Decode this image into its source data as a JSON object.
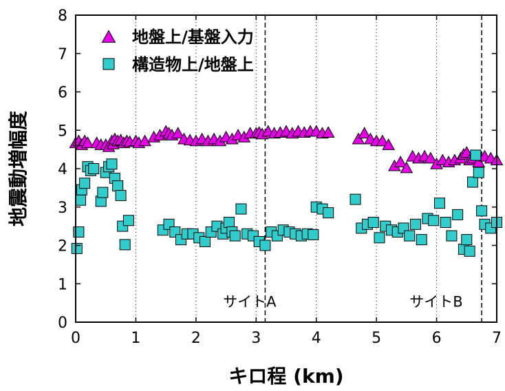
{
  "chart_data": {
    "type": "scatter",
    "xlabel": "キロ程 (km)",
    "ylabel": "地震動増幅度",
    "xlim": [
      0,
      7
    ],
    "ylim": [
      0,
      8
    ],
    "xticks": [
      "0",
      "1",
      "2",
      "3",
      "4",
      "5",
      "6",
      "7"
    ],
    "yticks": [
      "0",
      "1",
      "2",
      "3",
      "4",
      "5",
      "6",
      "7",
      "8"
    ],
    "grid": "vertical-dotted",
    "legend_position": "top-left",
    "reference_lines": [
      3.15,
      6.75
    ],
    "annotations": [
      {
        "text": "サイトA",
        "x": 2.45,
        "y": 0.4
      },
      {
        "text": "サイトB",
        "x": 5.55,
        "y": 0.4
      }
    ],
    "series": [
      {
        "name": "地盤上/基盤入力",
        "marker": "triangle",
        "color": "#e600e6",
        "points": [
          [
            0.0,
            4.65
          ],
          [
            0.05,
            4.7
          ],
          [
            0.1,
            4.6
          ],
          [
            0.15,
            4.7
          ],
          [
            0.2,
            4.65
          ],
          [
            0.35,
            4.65
          ],
          [
            0.42,
            4.6
          ],
          [
            0.5,
            4.6
          ],
          [
            0.55,
            4.55
          ],
          [
            0.6,
            4.7
          ],
          [
            0.62,
            4.62
          ],
          [
            0.65,
            4.75
          ],
          [
            0.7,
            4.7
          ],
          [
            0.75,
            4.72
          ],
          [
            0.8,
            4.65
          ],
          [
            0.85,
            4.7
          ],
          [
            0.9,
            4.68
          ],
          [
            1.0,
            4.7
          ],
          [
            1.05,
            4.65
          ],
          [
            1.15,
            4.7
          ],
          [
            1.3,
            4.8
          ],
          [
            1.4,
            4.85
          ],
          [
            1.5,
            4.95
          ],
          [
            1.55,
            4.9
          ],
          [
            1.6,
            4.85
          ],
          [
            1.7,
            4.9
          ],
          [
            1.8,
            4.75
          ],
          [
            1.9,
            4.72
          ],
          [
            2.0,
            4.7
          ],
          [
            2.1,
            4.75
          ],
          [
            2.2,
            4.7
          ],
          [
            2.3,
            4.75
          ],
          [
            2.4,
            4.7
          ],
          [
            2.5,
            4.8
          ],
          [
            2.6,
            4.75
          ],
          [
            2.7,
            4.85
          ],
          [
            2.8,
            4.8
          ],
          [
            2.9,
            4.9
          ],
          [
            3.0,
            4.9
          ],
          [
            3.05,
            4.92
          ],
          [
            3.1,
            4.88
          ],
          [
            3.2,
            4.95
          ],
          [
            3.3,
            4.9
          ],
          [
            3.4,
            4.92
          ],
          [
            3.5,
            4.95
          ],
          [
            3.6,
            4.9
          ],
          [
            3.7,
            4.95
          ],
          [
            3.8,
            4.92
          ],
          [
            3.9,
            4.95
          ],
          [
            4.0,
            4.95
          ],
          [
            4.1,
            4.9
          ],
          [
            4.2,
            4.92
          ],
          [
            4.7,
            4.75
          ],
          [
            4.8,
            4.9
          ],
          [
            4.9,
            4.75
          ],
          [
            5.0,
            4.7
          ],
          [
            5.1,
            4.7
          ],
          [
            5.2,
            4.6
          ],
          [
            5.3,
            4.05
          ],
          [
            5.4,
            4.15
          ],
          [
            5.5,
            4.0
          ],
          [
            5.6,
            4.3
          ],
          [
            5.7,
            4.25
          ],
          [
            5.8,
            4.3
          ],
          [
            5.9,
            4.25
          ],
          [
            6.0,
            4.1
          ],
          [
            6.1,
            4.2
          ],
          [
            6.2,
            4.15
          ],
          [
            6.3,
            4.2
          ],
          [
            6.4,
            4.25
          ],
          [
            6.45,
            4.35
          ],
          [
            6.5,
            4.4
          ],
          [
            6.55,
            4.2
          ],
          [
            6.6,
            4.25
          ],
          [
            6.7,
            4.15
          ],
          [
            6.8,
            4.3
          ],
          [
            6.9,
            4.25
          ],
          [
            7.0,
            4.2
          ]
        ]
      },
      {
        "name": "構造物上/地盤上",
        "marker": "square",
        "color": "#33cccc",
        "points": [
          [
            0.02,
            1.92
          ],
          [
            0.05,
            2.35
          ],
          [
            0.08,
            3.18
          ],
          [
            0.1,
            3.45
          ],
          [
            0.15,
            3.62
          ],
          [
            0.2,
            4.05
          ],
          [
            0.25,
            3.95
          ],
          [
            0.3,
            4.0
          ],
          [
            0.42,
            3.15
          ],
          [
            0.45,
            3.38
          ],
          [
            0.5,
            3.9
          ],
          [
            0.55,
            4.05
          ],
          [
            0.6,
            4.12
          ],
          [
            0.65,
            3.75
          ],
          [
            0.7,
            3.55
          ],
          [
            0.75,
            3.3
          ],
          [
            0.78,
            2.5
          ],
          [
            0.82,
            2.02
          ],
          [
            0.88,
            2.65
          ],
          [
            1.45,
            2.4
          ],
          [
            1.55,
            2.55
          ],
          [
            1.65,
            2.35
          ],
          [
            1.75,
            2.15
          ],
          [
            1.85,
            2.3
          ],
          [
            1.95,
            2.3
          ],
          [
            2.05,
            2.2
          ],
          [
            2.15,
            2.1
          ],
          [
            2.25,
            2.35
          ],
          [
            2.35,
            2.5
          ],
          [
            2.45,
            2.3
          ],
          [
            2.5,
            2.45
          ],
          [
            2.55,
            2.6
          ],
          [
            2.6,
            2.35
          ],
          [
            2.65,
            2.25
          ],
          [
            2.75,
            2.95
          ],
          [
            2.85,
            2.3
          ],
          [
            2.95,
            2.25
          ],
          [
            3.05,
            2.1
          ],
          [
            3.15,
            2.0
          ],
          [
            3.25,
            2.35
          ],
          [
            3.35,
            2.25
          ],
          [
            3.45,
            2.4
          ],
          [
            3.55,
            2.35
          ],
          [
            3.65,
            2.3
          ],
          [
            3.75,
            2.25
          ],
          [
            3.85,
            2.3
          ],
          [
            3.95,
            2.28
          ],
          [
            4.0,
            3.0
          ],
          [
            4.1,
            2.95
          ],
          [
            4.2,
            2.85
          ],
          [
            4.65,
            3.2
          ],
          [
            4.75,
            2.45
          ],
          [
            4.85,
            2.55
          ],
          [
            4.95,
            2.6
          ],
          [
            5.05,
            2.2
          ],
          [
            5.15,
            2.5
          ],
          [
            5.25,
            2.4
          ],
          [
            5.35,
            2.35
          ],
          [
            5.45,
            2.45
          ],
          [
            5.55,
            2.25
          ],
          [
            5.65,
            2.55
          ],
          [
            5.75,
            2.15
          ],
          [
            5.85,
            2.7
          ],
          [
            5.95,
            2.65
          ],
          [
            6.05,
            3.1
          ],
          [
            6.15,
            2.6
          ],
          [
            6.25,
            2.25
          ],
          [
            6.35,
            2.8
          ],
          [
            6.45,
            1.9
          ],
          [
            6.5,
            2.15
          ],
          [
            6.55,
            1.85
          ],
          [
            6.6,
            3.65
          ],
          [
            6.65,
            4.35
          ],
          [
            6.7,
            3.9
          ],
          [
            6.75,
            2.9
          ],
          [
            6.8,
            2.55
          ],
          [
            6.9,
            2.45
          ],
          [
            7.0,
            2.6
          ]
        ]
      }
    ]
  }
}
